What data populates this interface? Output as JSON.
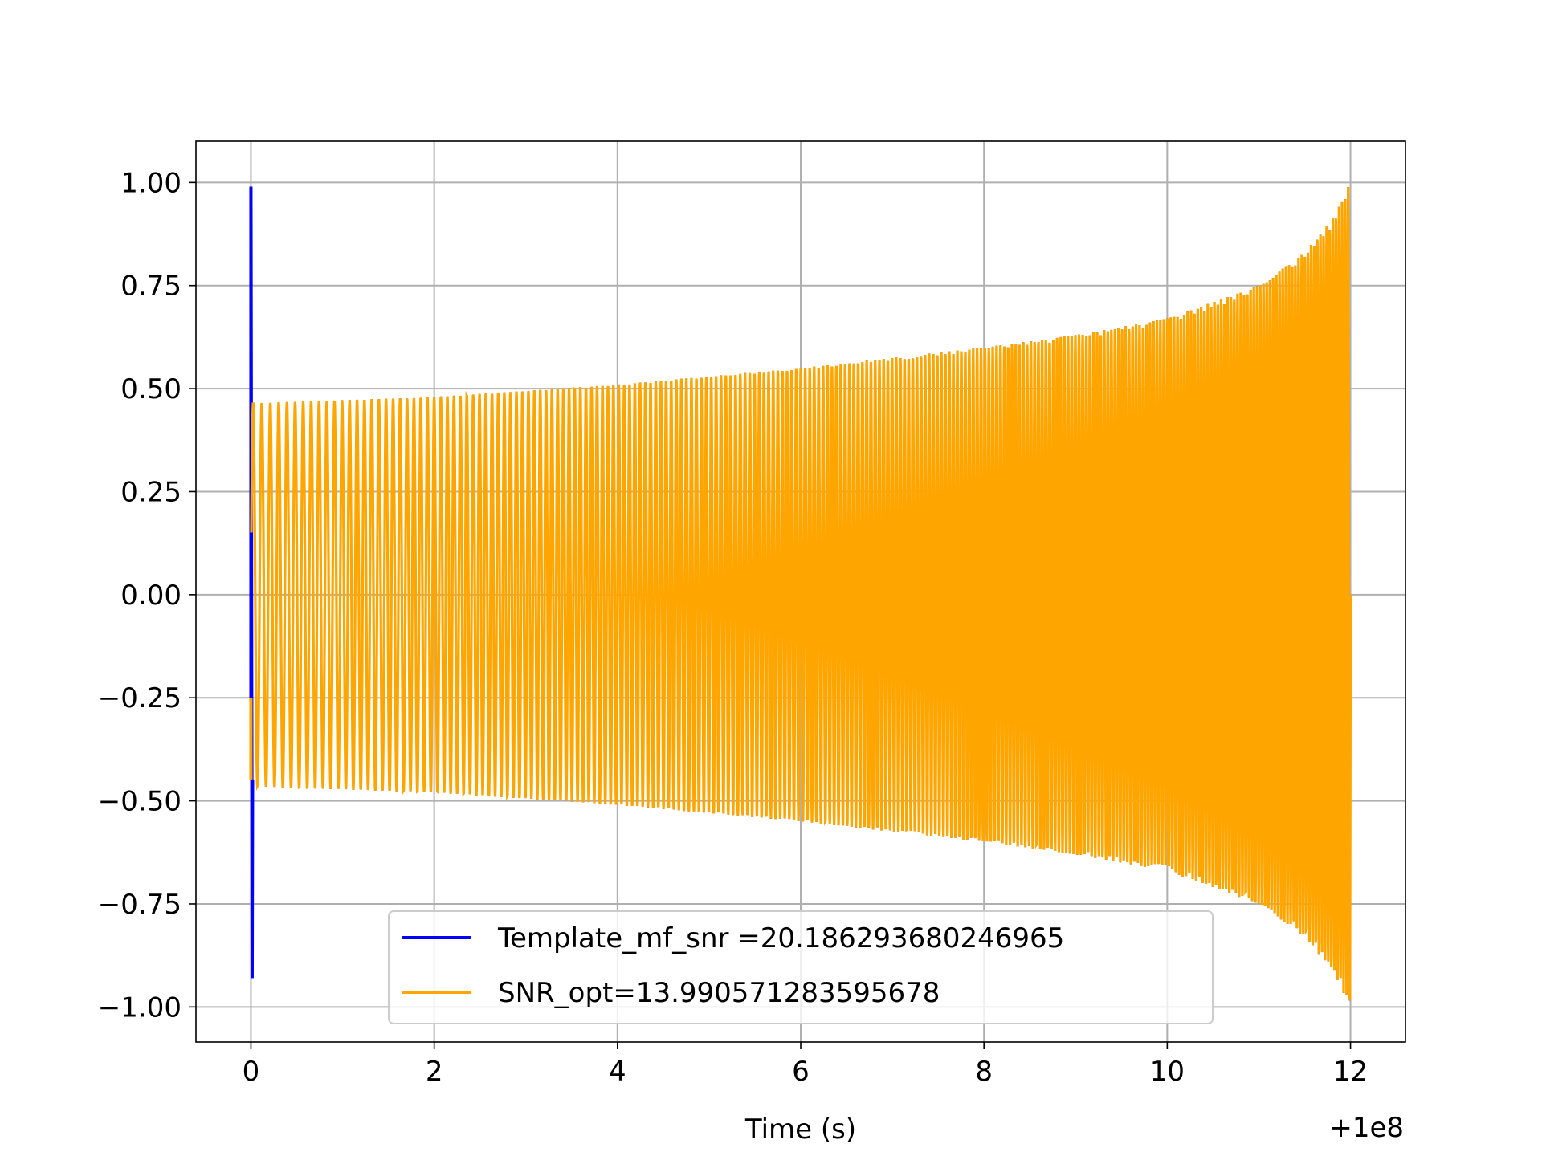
{
  "chart_data": {
    "type": "line",
    "title": "",
    "xlabel": "Time (s)",
    "ylabel": "",
    "x_offset_label": "+1e8",
    "xlim": [
      -0.6,
      12.6
    ],
    "ylim": [
      -1.085,
      1.1
    ],
    "xticks": [
      0,
      2,
      4,
      6,
      8,
      10,
      12
    ],
    "xtick_labels": [
      "0",
      "2",
      "4",
      "6",
      "8",
      "10",
      "12"
    ],
    "yticks": [
      1.0,
      0.75,
      0.5,
      0.25,
      0.0,
      -0.25,
      -0.5,
      -0.75,
      -1.0
    ],
    "ytick_labels": [
      "1.00",
      "0.75",
      "0.50",
      "0.25",
      "0.00",
      "−0.25",
      "−0.50",
      "−0.75",
      "−1.00"
    ],
    "grid": true,
    "legend_position": "lower-center",
    "series": [
      {
        "name": "Template_mf_snr =20.186293680246965",
        "color": "#0000ff",
        "t_start": 0.0,
        "t_end": 12.0,
        "start_spike": [
          0.99,
          -0.93
        ],
        "envelope": [
          [
            0.1,
            0.465
          ],
          [
            2,
            0.48
          ],
          [
            4,
            0.51
          ],
          [
            6,
            0.55
          ],
          [
            8,
            0.6
          ],
          [
            9,
            0.63
          ],
          [
            10,
            0.67
          ],
          [
            11,
            0.75
          ],
          [
            11.5,
            0.83
          ],
          [
            11.8,
            0.91
          ],
          [
            12.0,
            1.0
          ]
        ]
      },
      {
        "name": "SNR_opt=13.990571283595678",
        "color": "#ffa500",
        "t_start": 0.0,
        "t_end": 12.0,
        "envelope": [
          [
            0.1,
            0.465
          ],
          [
            2,
            0.48
          ],
          [
            4,
            0.51
          ],
          [
            6,
            0.55
          ],
          [
            8,
            0.6
          ],
          [
            9,
            0.63
          ],
          [
            10,
            0.67
          ],
          [
            11,
            0.75
          ],
          [
            11.5,
            0.83
          ],
          [
            11.8,
            0.91
          ],
          [
            12.0,
            1.0
          ]
        ]
      }
    ]
  }
}
